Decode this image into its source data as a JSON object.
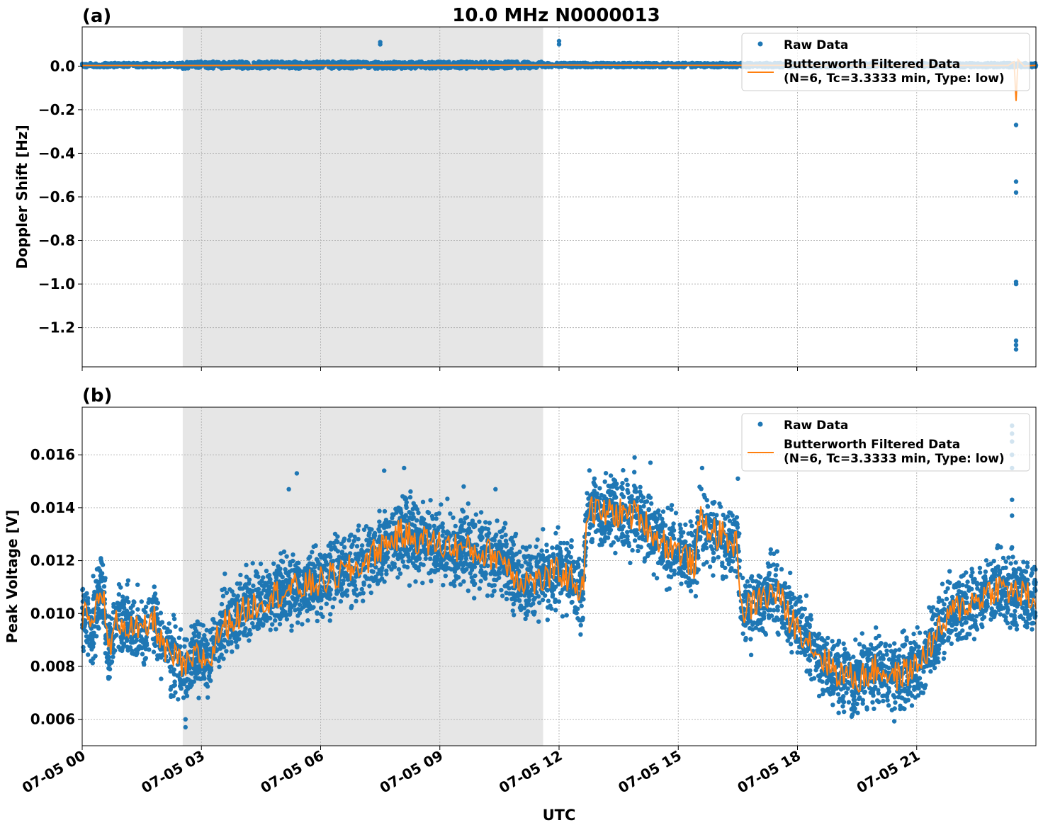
{
  "figure": {
    "title": "10.0 MHz N0000013",
    "xlabel": "UTC"
  },
  "chart_data": [
    {
      "type": "scatter",
      "panel_label": "(a)",
      "ylabel": "Doppler Shift [Hz]",
      "xlim": [
        0,
        24
      ],
      "ylim": [
        -1.38,
        0.18
      ],
      "x_ticks": [
        0,
        3,
        6,
        9,
        12,
        15,
        18,
        21
      ],
      "x_tick_labels": [
        "07-05 00",
        "07-05 03",
        "07-05 06",
        "07-05 09",
        "07-05 12",
        "07-05 15",
        "07-05 18",
        "07-05 21"
      ],
      "y_ticks": [
        0.0,
        -0.2,
        -0.4,
        -0.6,
        -0.8,
        -1.0,
        -1.2
      ],
      "y_tick_labels": [
        "0.0",
        "−0.2",
        "−0.4",
        "−0.6",
        "−0.8",
        "−1.0",
        "−1.2"
      ],
      "shaded_region": [
        2.53,
        11.6
      ],
      "grid": true,
      "legend_position": "top-right",
      "legend": [
        {
          "kind": "marker",
          "label": "Raw Data"
        },
        {
          "kind": "line",
          "label": "Butterworth Filtered Data\n(N=6, Tc=3.3333 min, Type: low)"
        }
      ],
      "series": [
        {
          "name": "Raw Data",
          "color": "#1f77b4",
          "points": [
            [
              0,
              0.01
            ],
            [
              1,
              0.005
            ],
            [
              2,
              0.008
            ],
            [
              3,
              0.002
            ],
            [
              4,
              0.01
            ],
            [
              5,
              0.015
            ],
            [
              6,
              0.002
            ],
            [
              7,
              0.008
            ],
            [
              8,
              0.004
            ],
            [
              9,
              0.006
            ],
            [
              10,
              0.003
            ],
            [
              11,
              0.005
            ],
            [
              12,
              0.004
            ],
            [
              13,
              0.006
            ],
            [
              14,
              0.004
            ],
            [
              15,
              0.002
            ],
            [
              16,
              0.004
            ],
            [
              17,
              0.003
            ],
            [
              18,
              0.005
            ],
            [
              19,
              0.004
            ],
            [
              20,
              0.003
            ],
            [
              21,
              0.005
            ],
            [
              22,
              0.004
            ],
            [
              23,
              0.003
            ],
            [
              24,
              0.004
            ],
            [
              7.5,
              0.1
            ],
            [
              7.5,
              0.11
            ],
            [
              12.0,
              0.1
            ],
            [
              12.0,
              0.115
            ],
            [
              23.5,
              -0.27
            ],
            [
              23.5,
              -0.53
            ],
            [
              23.5,
              -0.58
            ],
            [
              23.5,
              -0.99
            ],
            [
              23.5,
              -1.0
            ],
            [
              23.5,
              -1.26
            ],
            [
              23.5,
              -1.28
            ],
            [
              23.5,
              -1.3
            ]
          ],
          "band": {
            "center": 0.005,
            "spread": 0.02
          }
        },
        {
          "name": "Butterworth Filtered Data",
          "color": "#ff7f0e",
          "points": [
            [
              0,
              0.003
            ],
            [
              3,
              0.003
            ],
            [
              6,
              0.004
            ],
            [
              9,
              0.004
            ],
            [
              12,
              0.005
            ],
            [
              15,
              0.004
            ],
            [
              18,
              0.004
            ],
            [
              21,
              0.003
            ],
            [
              23.3,
              0.003
            ],
            [
              23.45,
              0.02
            ],
            [
              23.5,
              -0.16
            ],
            [
              23.55,
              0.03
            ],
            [
              23.7,
              0.0
            ],
            [
              24,
              0.004
            ]
          ]
        }
      ]
    },
    {
      "type": "scatter",
      "panel_label": "(b)",
      "ylabel": "Peak Voltage [V]",
      "xlim": [
        0,
        24
      ],
      "ylim": [
        0.005,
        0.0178
      ],
      "x_ticks": [
        0,
        3,
        6,
        9,
        12,
        15,
        18,
        21
      ],
      "x_tick_labels": [
        "07-05 00",
        "07-05 03",
        "07-05 06",
        "07-05 09",
        "07-05 12",
        "07-05 15",
        "07-05 18",
        "07-05 21"
      ],
      "y_ticks": [
        0.006,
        0.008,
        0.01,
        0.012,
        0.014,
        0.016
      ],
      "y_tick_labels": [
        "0.006",
        "0.008",
        "0.010",
        "0.012",
        "0.014",
        "0.016"
      ],
      "shaded_region": [
        2.53,
        11.6
      ],
      "grid": true,
      "legend_position": "top-right",
      "legend": [
        {
          "kind": "marker",
          "label": "Raw Data"
        },
        {
          "kind": "line",
          "label": "Butterworth Filtered Data\n(N=6, Tc=3.3333 min, Type: low)"
        }
      ],
      "series": [
        {
          "name": "Butterworth Filtered Data",
          "color": "#ff7f0e",
          "points": [
            [
              0,
              0.01
            ],
            [
              0.25,
              0.0095
            ],
            [
              0.5,
              0.0112
            ],
            [
              0.65,
              0.0085
            ],
            [
              0.9,
              0.0098
            ],
            [
              1.2,
              0.0095
            ],
            [
              1.5,
              0.0092
            ],
            [
              1.8,
              0.0098
            ],
            [
              2.1,
              0.0085
            ],
            [
              2.4,
              0.0082
            ],
            [
              2.6,
              0.0079
            ],
            [
              2.9,
              0.0084
            ],
            [
              3.2,
              0.0082
            ],
            [
              3.5,
              0.0095
            ],
            [
              4.0,
              0.01
            ],
            [
              4.5,
              0.0105
            ],
            [
              5.0,
              0.0108
            ],
            [
              5.5,
              0.011
            ],
            [
              6.0,
              0.0112
            ],
            [
              6.5,
              0.0115
            ],
            [
              7.0,
              0.0118
            ],
            [
              7.5,
              0.0125
            ],
            [
              8.0,
              0.013
            ],
            [
              8.5,
              0.0128
            ],
            [
              9.0,
              0.0126
            ],
            [
              9.5,
              0.0125
            ],
            [
              10.0,
              0.0123
            ],
            [
              10.5,
              0.0122
            ],
            [
              11.0,
              0.0113
            ],
            [
              11.5,
              0.0112
            ],
            [
              12.0,
              0.0116
            ],
            [
              12.4,
              0.0112
            ],
            [
              12.6,
              0.0108
            ],
            [
              12.7,
              0.014
            ],
            [
              13.0,
              0.0138
            ],
            [
              13.5,
              0.0138
            ],
            [
              14.0,
              0.0137
            ],
            [
              14.5,
              0.0128
            ],
            [
              15.0,
              0.0124
            ],
            [
              15.4,
              0.0118
            ],
            [
              15.55,
              0.0135
            ],
            [
              16.0,
              0.013
            ],
            [
              16.5,
              0.0125
            ],
            [
              16.6,
              0.01
            ],
            [
              17.0,
              0.0105
            ],
            [
              17.5,
              0.0108
            ],
            [
              17.8,
              0.0098
            ],
            [
              18.2,
              0.0092
            ],
            [
              18.5,
              0.0085
            ],
            [
              19.0,
              0.0078
            ],
            [
              19.5,
              0.0075
            ],
            [
              20.0,
              0.0079
            ],
            [
              20.5,
              0.0076
            ],
            [
              21.0,
              0.008
            ],
            [
              21.5,
              0.0092
            ],
            [
              22.0,
              0.0102
            ],
            [
              22.5,
              0.0105
            ],
            [
              23.0,
              0.011
            ],
            [
              23.5,
              0.0108
            ],
            [
              24,
              0.0105
            ]
          ],
          "band": {
            "spread": 0.0012
          }
        },
        {
          "name": "Raw Data",
          "color": "#1f77b4",
          "points": [
            [
              2.6,
              0.0057
            ],
            [
              2.6,
              0.006
            ],
            [
              23.4,
              0.0168
            ],
            [
              23.4,
              0.0171
            ],
            [
              23.4,
              0.0165
            ],
            [
              23.4,
              0.016
            ],
            [
              23.4,
              0.0155
            ],
            [
              23.4,
              0.0143
            ],
            [
              23.4,
              0.0137
            ],
            [
              23.4,
              0.0125
            ],
            [
              5.4,
              0.0153
            ],
            [
              5.2,
              0.0147
            ],
            [
              7.6,
              0.0154
            ],
            [
              8.1,
              0.0155
            ],
            [
              13.9,
              0.0159
            ],
            [
              14.3,
              0.0157
            ],
            [
              15.6,
              0.0155
            ],
            [
              16.5,
              0.0151
            ],
            [
              9.6,
              0.0148
            ],
            [
              10.4,
              0.0147
            ]
          ]
        }
      ]
    }
  ]
}
